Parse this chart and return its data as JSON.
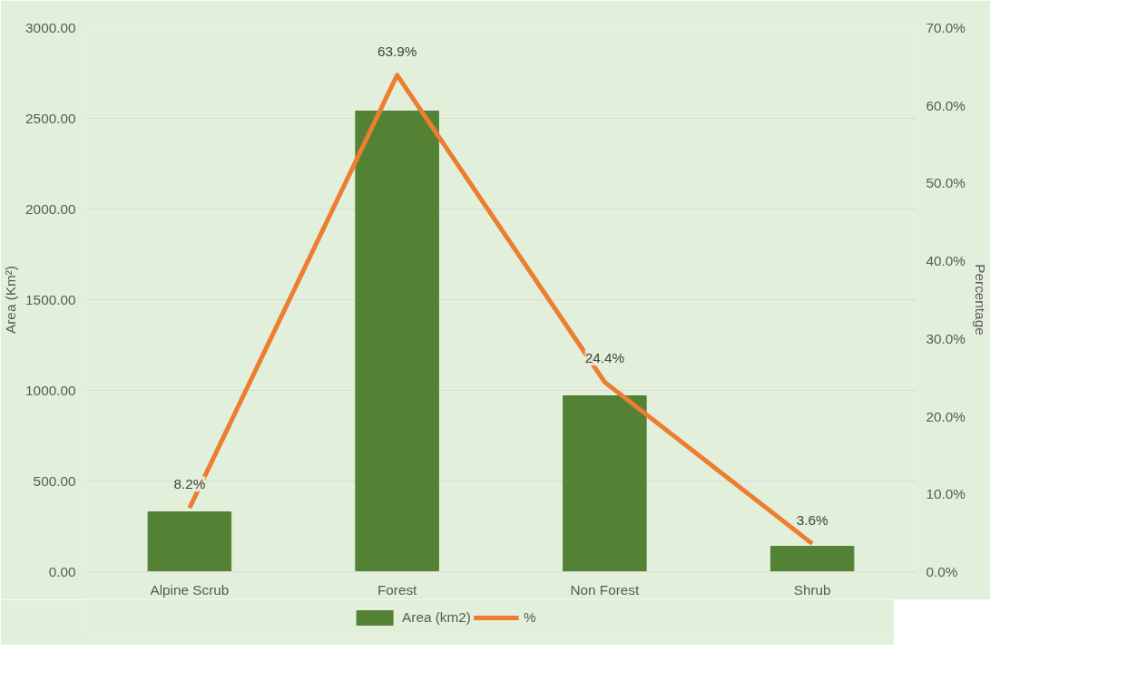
{
  "chart_data": {
    "type": "bar",
    "categories": [
      "Alpine Scrub",
      "Forest",
      "Non Forest",
      "Shrub"
    ],
    "ylabel": "Area (Km²)",
    "y2label": "Percentage",
    "series": [
      {
        "name": "Area (km2)",
        "color": "#548235",
        "values": [
          330,
          2540,
          970,
          140
        ]
      },
      {
        "name": "%",
        "type": "line",
        "axis": "y2",
        "color": "#ed7d31",
        "values": [
          8.2,
          63.9,
          24.4,
          3.6
        ],
        "value_labels": [
          "8.2%",
          "63.9%",
          "24.4%",
          "3.6%"
        ]
      }
    ],
    "ylim": [
      0,
      3000
    ],
    "yticks": [
      {
        "value": 0,
        "label": "0.00"
      },
      {
        "value": 500,
        "label": "500.00"
      },
      {
        "value": 1000,
        "label": "1000.00"
      },
      {
        "value": 1500,
        "label": "1500.00"
      },
      {
        "value": 2000,
        "label": "2000.00"
      },
      {
        "value": 2500,
        "label": "2500.00"
      },
      {
        "value": 3000,
        "label": "3000.00"
      }
    ],
    "y2lim": [
      0,
      70
    ],
    "y2ticks": [
      {
        "value": 0,
        "label": "0.0%"
      },
      {
        "value": 10,
        "label": "10.0%"
      },
      {
        "value": 20,
        "label": "20.0%"
      },
      {
        "value": 30,
        "label": "30.0%"
      },
      {
        "value": 40,
        "label": "40.0%"
      },
      {
        "value": 50,
        "label": "50.0%"
      },
      {
        "value": 60,
        "label": "60.0%"
      },
      {
        "value": 70,
        "label": "70.0%"
      }
    ],
    "grid": "y",
    "legend": "bottom"
  }
}
